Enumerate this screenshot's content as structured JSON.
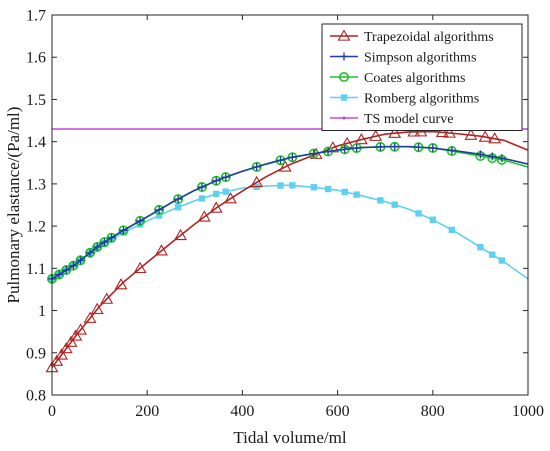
{
  "chart_data": {
    "type": "line",
    "xlabel": "Tidal volume/ml",
    "ylabel": "Pulmonary elastance/(Pa/ml)",
    "xlim": [
      0,
      1000
    ],
    "ylim": [
      0.8,
      1.7
    ],
    "xticks": [
      "0",
      "200",
      "400",
      "600",
      "800",
      "1000"
    ],
    "yticks": [
      "0.8",
      "0.9",
      "1",
      "1.1",
      "1.2",
      "1.3",
      "1.4",
      "1.5",
      "1.6",
      "1.7"
    ],
    "grid": false,
    "legend_position": "top-right",
    "series": [
      {
        "name": "Trapezoidal algorithms",
        "color": "#b22222",
        "marker": "triangle",
        "x": [
          0,
          50,
          100,
          150,
          200,
          250,
          300,
          350,
          400,
          450,
          500,
          550,
          600,
          650,
          700,
          750,
          800,
          850,
          900,
          950,
          1000
        ],
        "y": [
          0.865,
          0.94,
          1.01,
          1.067,
          1.114,
          1.16,
          1.205,
          1.247,
          1.283,
          1.317,
          1.346,
          1.368,
          1.39,
          1.405,
          1.418,
          1.423,
          1.424,
          1.419,
          1.413,
          1.403,
          1.38
        ],
        "markers_x": [
          0,
          10,
          20,
          30,
          40,
          50,
          60,
          80,
          95,
          115,
          145,
          185,
          230,
          270,
          320,
          345,
          375,
          430,
          490,
          555,
          590,
          620,
          650,
          680,
          720,
          760,
          775,
          820,
          835,
          880,
          910,
          930
        ]
      },
      {
        "name": "Simpson algorithms",
        "color": "#1f3fa0",
        "marker": "plus",
        "x": [
          0,
          50,
          100,
          150,
          200,
          250,
          300,
          350,
          400,
          450,
          500,
          550,
          600,
          650,
          700,
          750,
          800,
          850,
          900,
          950,
          1000
        ],
        "y": [
          1.075,
          1.11,
          1.155,
          1.19,
          1.222,
          1.255,
          1.285,
          1.31,
          1.33,
          1.347,
          1.362,
          1.372,
          1.38,
          1.386,
          1.388,
          1.388,
          1.385,
          1.378,
          1.37,
          1.36,
          1.347
        ],
        "markers_x": [
          0,
          15,
          30,
          45,
          60,
          80,
          95,
          110,
          125,
          150,
          185,
          225,
          265,
          315,
          345,
          365,
          430,
          480,
          505,
          550,
          580,
          615,
          640,
          690,
          720,
          770,
          800,
          840,
          900,
          925,
          945
        ]
      },
      {
        "name": "Coates algorithms",
        "color": "#22c322",
        "marker": "circle",
        "x": [
          0,
          50,
          100,
          150,
          200,
          250,
          300,
          350,
          400,
          450,
          500,
          550,
          600,
          650,
          700,
          750,
          800,
          850,
          900,
          950,
          1000
        ],
        "y": [
          1.075,
          1.11,
          1.155,
          1.19,
          1.222,
          1.255,
          1.285,
          1.31,
          1.33,
          1.347,
          1.362,
          1.372,
          1.38,
          1.386,
          1.388,
          1.388,
          1.385,
          1.376,
          1.366,
          1.356,
          1.34
        ],
        "markers_x": [
          0,
          15,
          30,
          45,
          60,
          80,
          95,
          110,
          125,
          150,
          185,
          225,
          265,
          315,
          345,
          365,
          430,
          480,
          505,
          550,
          580,
          615,
          640,
          690,
          720,
          770,
          800,
          840,
          900,
          925,
          945
        ]
      },
      {
        "name": "Romberg algorithms",
        "color": "#5fd0f0",
        "marker": "square",
        "x": [
          0,
          50,
          100,
          150,
          200,
          250,
          300,
          350,
          400,
          450,
          500,
          550,
          600,
          650,
          700,
          750,
          800,
          850,
          900,
          950,
          1000
        ],
        "y": [
          1.075,
          1.112,
          1.153,
          1.185,
          1.212,
          1.238,
          1.26,
          1.278,
          1.29,
          1.295,
          1.297,
          1.292,
          1.285,
          1.272,
          1.258,
          1.24,
          1.215,
          1.185,
          1.15,
          1.115,
          1.075
        ],
        "markers_x": [
          0,
          15,
          30,
          45,
          60,
          80,
          95,
          110,
          125,
          150,
          185,
          225,
          265,
          315,
          345,
          365,
          430,
          480,
          505,
          550,
          580,
          615,
          640,
          690,
          720,
          770,
          800,
          840,
          900,
          925,
          945
        ]
      },
      {
        "name": "TS model curve",
        "color": "#c04ad8",
        "marker": "dot",
        "x": [
          0,
          1000
        ],
        "y": [
          1.43,
          1.43
        ],
        "markers_x": []
      }
    ]
  }
}
